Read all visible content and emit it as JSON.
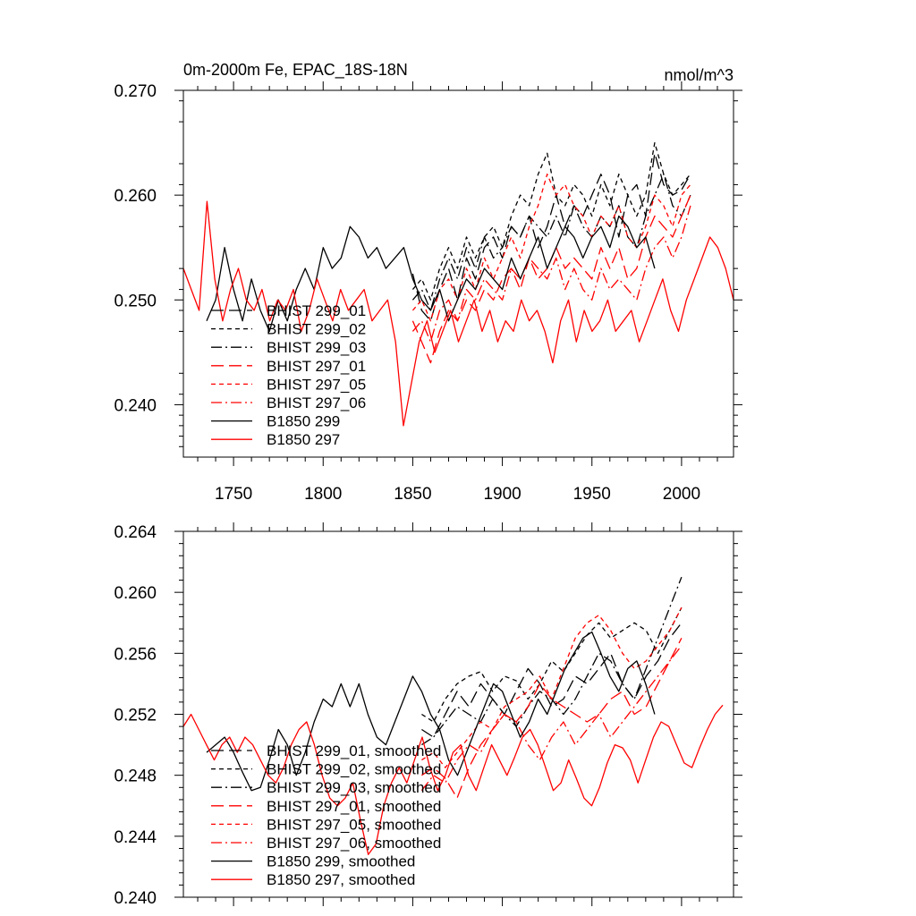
{
  "panel_top": {
    "title_left": "0m-2000m Fe, EPAC_18S-18N",
    "title_right": "nmol/m^3"
  },
  "chart_data": [
    {
      "type": "line",
      "xlim": [
        1722,
        2029
      ],
      "ylim": [
        0.235,
        0.27
      ],
      "x_ticks": [
        1750,
        1800,
        1850,
        1900,
        1950,
        2000
      ],
      "x_tick_labels": [
        "1750",
        "1800",
        "1850",
        "1900",
        "1950",
        "2000"
      ],
      "y_ticks": [
        0.24,
        0.25,
        0.26,
        0.27
      ],
      "y_tick_labels": [
        "0.240",
        "0.250",
        "0.260",
        "0.270"
      ],
      "grid": false,
      "legend_position": "lower-left",
      "legend": [
        "BHIST 299_01",
        "BHIST 299_02",
        "BHIST 299_03",
        "BHIST 297_01",
        "BHIST 297_05",
        "BHIST 297_06",
        "B1850 299",
        "B1850 297"
      ],
      "series": [
        {
          "name": "BHIST 299_01",
          "color": "#000000",
          "dash": "long-dash",
          "x_range": [
            1850,
            2005
          ],
          "values": [
            0.2525,
            0.249,
            0.248,
            0.251,
            0.253,
            0.25,
            0.254,
            0.252,
            0.255,
            0.256,
            0.254,
            0.257,
            0.256,
            0.258,
            0.255,
            0.257,
            0.26,
            0.257,
            0.259,
            0.258,
            0.26,
            0.262,
            0.26,
            0.256,
            0.26,
            0.261,
            0.258,
            0.264,
            0.261,
            0.26,
            0.2605,
            0.262
          ]
        },
        {
          "name": "BHIST 299_02",
          "color": "#000000",
          "dash": "dash",
          "x_range": [
            1850,
            2005
          ],
          "values": [
            0.251,
            0.252,
            0.25,
            0.253,
            0.255,
            0.253,
            0.256,
            0.254,
            0.256,
            0.257,
            0.255,
            0.258,
            0.26,
            0.259,
            0.262,
            0.264,
            0.26,
            0.259,
            0.261,
            0.26,
            0.258,
            0.261,
            0.259,
            0.262,
            0.26,
            0.258,
            0.26,
            0.265,
            0.262,
            0.26,
            0.261,
            0.262
          ]
        },
        {
          "name": "BHIST 299_03",
          "color": "#000000",
          "dash": "dash-dot",
          "x_range": [
            1850,
            2005
          ],
          "values": [
            0.25,
            0.251,
            0.249,
            0.252,
            0.254,
            0.252,
            0.255,
            0.253,
            0.256,
            0.254,
            0.255,
            0.257,
            0.256,
            0.258,
            0.257,
            0.256,
            0.258,
            0.256,
            0.259,
            0.257,
            0.256,
            0.258,
            0.257,
            0.259,
            0.256,
            0.255,
            0.258,
            0.26,
            0.262,
            0.259,
            0.258,
            0.26
          ]
        },
        {
          "name": "BHIST 297_01",
          "color": "#ff0000",
          "dash": "long-dash",
          "x_range": [
            1850,
            2005
          ],
          "values": [
            0.248,
            0.246,
            0.244,
            0.247,
            0.249,
            0.248,
            0.25,
            0.249,
            0.251,
            0.25,
            0.252,
            0.253,
            0.251,
            0.254,
            0.252,
            0.253,
            0.255,
            0.253,
            0.254,
            0.253,
            0.252,
            0.255,
            0.253,
            0.255,
            0.252,
            0.253,
            0.256,
            0.258,
            0.257,
            0.256,
            0.258,
            0.26
          ]
        },
        {
          "name": "BHIST 297_05",
          "color": "#ff0000",
          "dash": "dash",
          "x_range": [
            1850,
            2005
          ],
          "values": [
            0.249,
            0.25,
            0.248,
            0.251,
            0.252,
            0.25,
            0.253,
            0.251,
            0.254,
            0.252,
            0.254,
            0.256,
            0.254,
            0.257,
            0.259,
            0.262,
            0.26,
            0.261,
            0.259,
            0.258,
            0.256,
            0.258,
            0.257,
            0.259,
            0.256,
            0.255,
            0.257,
            0.26,
            0.259,
            0.257,
            0.26,
            0.261
          ]
        },
        {
          "name": "BHIST 297_06",
          "color": "#ff0000",
          "dash": "dash-dot",
          "x_range": [
            1850,
            2005
          ],
          "values": [
            0.247,
            0.248,
            0.246,
            0.249,
            0.25,
            0.248,
            0.251,
            0.25,
            0.252,
            0.251,
            0.25,
            0.253,
            0.252,
            0.254,
            0.253,
            0.252,
            0.254,
            0.251,
            0.253,
            0.251,
            0.25,
            0.253,
            0.251,
            0.252,
            0.251,
            0.25,
            0.253,
            0.255,
            0.256,
            0.254,
            0.256,
            0.259
          ]
        },
        {
          "name": "B1850 299",
          "color": "#000000",
          "dash": "solid",
          "x_range": [
            1735,
            1985
          ],
          "values": [
            0.248,
            0.25,
            0.255,
            0.251,
            0.248,
            0.252,
            0.249,
            0.247,
            0.25,
            0.248,
            0.251,
            0.253,
            0.251,
            0.255,
            0.253,
            0.254,
            0.257,
            0.256,
            0.254,
            0.255,
            0.253,
            0.254,
            0.255,
            0.252,
            0.25,
            0.249,
            0.251,
            0.248,
            0.25,
            0.252,
            0.251,
            0.253,
            0.252,
            0.251,
            0.254,
            0.252,
            0.254,
            0.256,
            0.253,
            0.255,
            0.257,
            0.256,
            0.254,
            0.256,
            0.257,
            0.255,
            0.258,
            0.257,
            0.255,
            0.256,
            0.253
          ]
        },
        {
          "name": "B1850 297",
          "color": "#ff0000",
          "dash": "solid",
          "x_range": [
            1722,
            2029
          ],
          "values": [
            0.253,
            0.251,
            0.249,
            0.2594,
            0.252,
            0.248,
            0.251,
            0.253,
            0.25,
            0.249,
            0.251,
            0.248,
            0.25,
            0.249,
            0.251,
            0.247,
            0.249,
            0.252,
            0.25,
            0.248,
            0.251,
            0.249,
            0.25,
            0.251,
            0.248,
            0.249,
            0.25,
            0.246,
            0.238,
            0.242,
            0.246,
            0.248,
            0.245,
            0.247,
            0.249,
            0.246,
            0.248,
            0.25,
            0.247,
            0.249,
            0.246,
            0.248,
            0.247,
            0.25,
            0.248,
            0.249,
            0.247,
            0.244,
            0.248,
            0.25,
            0.246,
            0.249,
            0.247,
            0.248,
            0.25,
            0.247,
            0.248,
            0.249,
            0.246,
            0.248,
            0.25,
            0.252,
            0.249,
            0.247,
            0.25,
            0.252,
            0.254,
            0.256,
            0.255,
            0.253,
            0.25
          ]
        }
      ]
    },
    {
      "type": "line",
      "xlim": [
        1722,
        2029
      ],
      "ylim": [
        0.24,
        0.264
      ],
      "x_ticks": [
        1750,
        1800,
        1850,
        1900,
        1950,
        2000
      ],
      "y_ticks": [
        0.24,
        0.244,
        0.248,
        0.252,
        0.256,
        0.26,
        0.264
      ],
      "y_tick_labels": [
        "0.240",
        "0.244",
        "0.248",
        "0.252",
        "0.256",
        "0.260",
        "0.264"
      ],
      "grid": false,
      "legend_position": "lower-left",
      "legend": [
        "BHIST 299_01, smoothed",
        "BHIST 299_02, smoothed",
        "BHIST 299_03, smoothed",
        "BHIST 297_01, smoothed",
        "BHIST 297_05, smoothed",
        "BHIST 297_06, smoothed",
        "B1850 299, smoothed",
        "B1850 297, smoothed"
      ],
      "series": [
        {
          "name": "BHIST 299_01, smoothed",
          "color": "#000000",
          "dash": "long-dash",
          "x_range": [
            1855,
            2000
          ],
          "values": [
            0.251,
            0.2505,
            0.252,
            0.2535,
            0.2525,
            0.254,
            0.253,
            0.252,
            0.2535,
            0.255,
            0.254,
            0.2525,
            0.253,
            0.2545,
            0.254,
            0.255,
            0.256,
            0.254,
            0.253,
            0.2545,
            0.2555,
            0.257,
            0.258
          ]
        },
        {
          "name": "BHIST 299_02, smoothed",
          "color": "#000000",
          "dash": "dash",
          "x_range": [
            1855,
            2000
          ],
          "values": [
            0.252,
            0.2515,
            0.253,
            0.254,
            0.2545,
            0.2548,
            0.2535,
            0.2545,
            0.2542,
            0.253,
            0.254,
            0.2555,
            0.2548,
            0.256,
            0.2572,
            0.258,
            0.257,
            0.2575,
            0.258,
            0.2575,
            0.256,
            0.2575,
            0.259
          ]
        },
        {
          "name": "BHIST 299_03, smoothed",
          "color": "#000000",
          "dash": "dash-dot",
          "x_range": [
            1855,
            2000
          ],
          "values": [
            0.25,
            0.2505,
            0.2515,
            0.2525,
            0.252,
            0.2515,
            0.253,
            0.252,
            0.2512,
            0.2525,
            0.2535,
            0.253,
            0.252,
            0.253,
            0.2545,
            0.256,
            0.2555,
            0.254,
            0.253,
            0.255,
            0.257,
            0.259,
            0.261
          ]
        },
        {
          "name": "BHIST 297_01, smoothed",
          "color": "#ff0000",
          "dash": "long-dash",
          "x_range": [
            1855,
            2000
          ],
          "values": [
            0.248,
            0.2485,
            0.2478,
            0.2465,
            0.2485,
            0.25,
            0.251,
            0.252,
            0.2515,
            0.2525,
            0.254,
            0.253,
            0.2525,
            0.252,
            0.2515,
            0.252,
            0.253,
            0.2535,
            0.252,
            0.2525,
            0.254,
            0.2555,
            0.257
          ]
        },
        {
          "name": "BHIST 297_05, smoothed",
          "color": "#ff0000",
          "dash": "dash",
          "x_range": [
            1855,
            2000
          ],
          "values": [
            0.249,
            0.2495,
            0.2485,
            0.2495,
            0.2505,
            0.2515,
            0.251,
            0.2525,
            0.253,
            0.2535,
            0.2545,
            0.253,
            0.255,
            0.257,
            0.258,
            0.2585,
            0.2575,
            0.256,
            0.255,
            0.2555,
            0.2565,
            0.2575,
            0.259
          ]
        },
        {
          "name": "BHIST 297_06, smoothed",
          "color": "#ff0000",
          "dash": "dash-dot",
          "x_range": [
            1855,
            2000
          ],
          "values": [
            0.247,
            0.248,
            0.2475,
            0.249,
            0.25,
            0.2495,
            0.251,
            0.252,
            0.2515,
            0.25,
            0.249,
            0.2505,
            0.2515,
            0.25,
            0.251,
            0.252,
            0.2505,
            0.2515,
            0.2525,
            0.2535,
            0.2545,
            0.2555,
            0.2565
          ]
        },
        {
          "name": "B1850 299, smoothed",
          "color": "#000000",
          "dash": "solid",
          "x_range": [
            1735,
            1985
          ],
          "values": [
            0.2495,
            0.25,
            0.2505,
            0.2495,
            0.2482,
            0.247,
            0.2472,
            0.249,
            0.251,
            0.25,
            0.248,
            0.2495,
            0.2515,
            0.253,
            0.2525,
            0.254,
            0.2525,
            0.254,
            0.252,
            0.2505,
            0.25,
            0.2515,
            0.253,
            0.2545,
            0.2535,
            0.252,
            0.251,
            0.249,
            0.248,
            0.2495,
            0.251,
            0.2525,
            0.254,
            0.2535,
            0.252,
            0.2505,
            0.2515,
            0.253,
            0.252,
            0.2535,
            0.255,
            0.256,
            0.257,
            0.2574,
            0.256,
            0.2545,
            0.2535,
            0.255,
            0.2555,
            0.254,
            0.252
          ]
        },
        {
          "name": "B1850 297, smoothed",
          "color": "#ff0000",
          "dash": "solid",
          "x_range": [
            1722,
            2023
          ],
          "values": [
            0.2512,
            0.252,
            0.251,
            0.25,
            0.249,
            0.25,
            0.2505,
            0.2495,
            0.2505,
            0.25,
            0.249,
            0.248,
            0.2475,
            0.2485,
            0.25,
            0.251,
            0.2515,
            0.25,
            0.248,
            0.2465,
            0.246,
            0.2465,
            0.2475,
            0.245,
            0.2428,
            0.2435,
            0.246,
            0.2475,
            0.2485,
            0.2475,
            0.249,
            0.2505,
            0.2485,
            0.247,
            0.248,
            0.2495,
            0.25,
            0.248,
            0.247,
            0.2485,
            0.25,
            0.249,
            0.248,
            0.2492,
            0.2505,
            0.251,
            0.25,
            0.2485,
            0.247,
            0.2475,
            0.249,
            0.2478,
            0.2465,
            0.246,
            0.2472,
            0.2488,
            0.25,
            0.2498,
            0.249,
            0.2475,
            0.249,
            0.2505,
            0.2515,
            0.2512,
            0.25,
            0.2488,
            0.2485,
            0.2498,
            0.251,
            0.252,
            0.2526
          ]
        }
      ]
    }
  ]
}
